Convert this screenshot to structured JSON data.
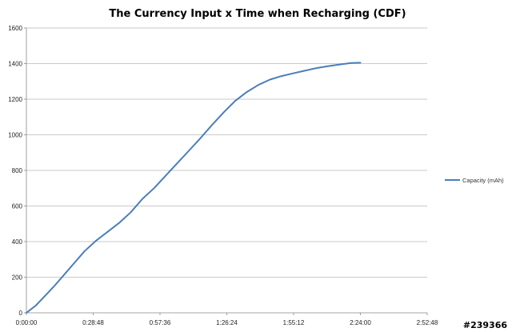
{
  "chart_data": {
    "type": "line",
    "title": "The Currency Input x Time when Recharging (CDF)",
    "xlabel": "",
    "ylabel": "",
    "x_tick_labels": [
      "0:00:00",
      "0:28:48",
      "0:57:36",
      "1:26:24",
      "1:55:12",
      "2:24:00",
      "2:52:48"
    ],
    "x_tick_values_min": [
      0,
      28.8,
      57.6,
      86.4,
      115.2,
      144,
      172.8
    ],
    "xlim_min": [
      0,
      172.8
    ],
    "y_tick_labels": [
      "0",
      "200",
      "400",
      "600",
      "800",
      "1000",
      "1200",
      "1400",
      "1600"
    ],
    "ylim": [
      0,
      1600
    ],
    "grid": {
      "horizontal": true,
      "vertical": false
    },
    "legend_position": "right",
    "series": [
      {
        "name": "Capacity (mAh)",
        "color": "#4a7ebb",
        "x_min": [
          0,
          4,
          8,
          12,
          16,
          20,
          25,
          30,
          35,
          40,
          45,
          50,
          55,
          60,
          65,
          70,
          75,
          80,
          85,
          90,
          95,
          100,
          105,
          110,
          115,
          120,
          125,
          130,
          135,
          140,
          144
        ],
        "y": [
          0,
          40,
          95,
          150,
          210,
          270,
          345,
          405,
          455,
          505,
          565,
          640,
          700,
          770,
          840,
          910,
          980,
          1055,
          1125,
          1190,
          1240,
          1280,
          1310,
          1330,
          1345,
          1360,
          1375,
          1385,
          1395,
          1403,
          1405
        ]
      }
    ]
  },
  "watermark": "#239366",
  "colors": {
    "gridline": "#b8b8b8",
    "axis": "#888888",
    "series": "#4a7ebb"
  }
}
